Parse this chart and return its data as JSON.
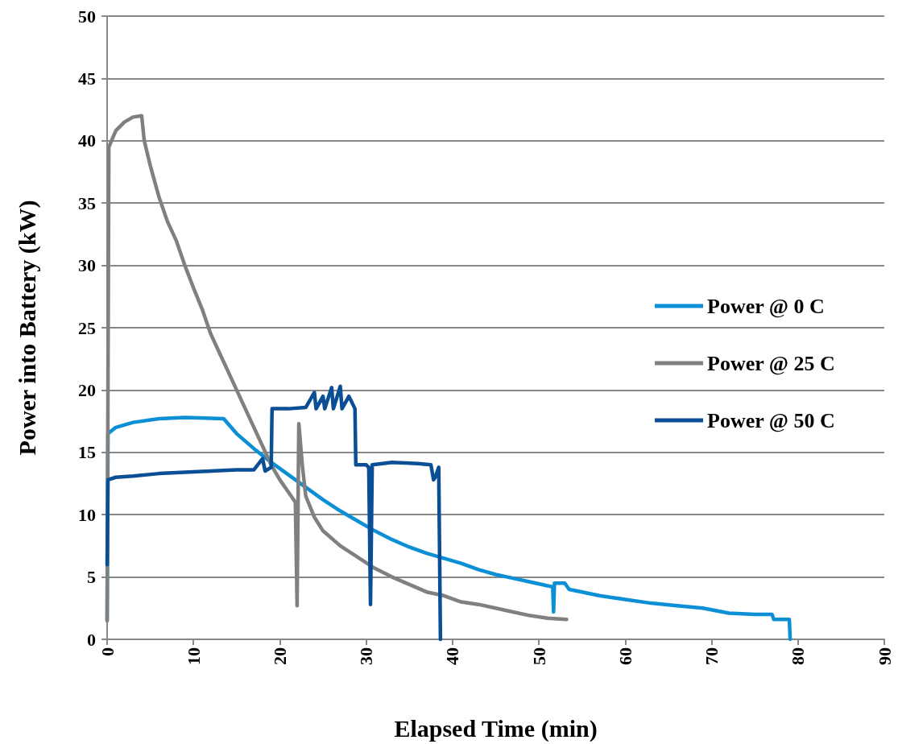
{
  "chart_data": {
    "type": "line",
    "xlabel": "Elapsed Time (min)",
    "ylabel": "Power into Battery (kW)",
    "xlim": [
      0,
      90
    ],
    "xticks": [
      0,
      10,
      20,
      30,
      40,
      50,
      60,
      70,
      80,
      90
    ],
    "ylim": [
      0,
      50
    ],
    "yticks": [
      0,
      5,
      10,
      15,
      20,
      25,
      30,
      35,
      40,
      45,
      50
    ],
    "grid": "y",
    "legend": "right",
    "marker": "none",
    "line_style": "solid",
    "series": [
      {
        "name": "Power @ 0 C",
        "color": "#0c8fd4",
        "x": [
          0,
          0.1,
          1,
          3,
          6,
          9,
          13.5,
          15,
          17,
          19,
          21,
          23,
          25,
          27,
          29,
          31,
          33,
          35,
          37,
          39,
          41,
          43,
          45,
          47,
          49,
          51,
          51.6,
          51.7,
          51.8,
          53,
          53.5,
          55,
          57,
          60,
          63,
          66,
          69,
          72,
          75,
          77,
          77.2,
          79,
          79.1
        ],
        "values": [
          1.5,
          16.5,
          17,
          17.4,
          17.7,
          17.8,
          17.7,
          16.5,
          15.3,
          14.2,
          13.2,
          12.2,
          11.2,
          10.3,
          9.5,
          8.7,
          8,
          7.4,
          6.9,
          6.5,
          6.1,
          5.6,
          5.2,
          4.9,
          4.6,
          4.3,
          4.2,
          2.2,
          4.5,
          4.5,
          4,
          3.8,
          3.5,
          3.2,
          2.9,
          2.7,
          2.5,
          2.1,
          2,
          2,
          1.6,
          1.6,
          0
        ]
      },
      {
        "name": "Power @ 25 C",
        "color": "#808080",
        "x": [
          0,
          0.2,
          1,
          2,
          3,
          4,
          4.3,
          5,
          6,
          7,
          8,
          9,
          10,
          11,
          12,
          13,
          14,
          15,
          16,
          17,
          18,
          19,
          20,
          21,
          21.8,
          22,
          22.2,
          22.6,
          23,
          24,
          25,
          27,
          29,
          31,
          33,
          35,
          37,
          39,
          41,
          43,
          45,
          47,
          49,
          51,
          53.2
        ],
        "values": [
          1.5,
          39.5,
          40.8,
          41.5,
          41.9,
          42,
          40,
          38,
          35.5,
          33.5,
          32,
          30,
          28.2,
          26.5,
          24.5,
          23,
          21.5,
          20,
          18.5,
          17,
          15.5,
          14,
          12.8,
          11.8,
          11,
          2.7,
          17.3,
          14,
          11.5,
          9.8,
          8.7,
          7.5,
          6.6,
          5.7,
          5,
          4.4,
          3.8,
          3.5,
          3,
          2.8,
          2.5,
          2.2,
          1.9,
          1.7,
          1.6
        ]
      },
      {
        "name": "Power @ 50 C",
        "color": "#0a4f96",
        "x": [
          0,
          0.1,
          1,
          3,
          6,
          9,
          12,
          15,
          17,
          18,
          18.3,
          19,
          19.1,
          21,
          23,
          24,
          24.2,
          25,
          25.2,
          26,
          26.2,
          27,
          27.2,
          28,
          28.7,
          28.8,
          30,
          30.3,
          30.5,
          30.7,
          33,
          36,
          37.5,
          37.8,
          38,
          38.4,
          38.6
        ],
        "values": [
          6,
          12.8,
          13,
          13.1,
          13.3,
          13.4,
          13.5,
          13.6,
          13.6,
          14.5,
          13.5,
          13.8,
          18.5,
          18.5,
          18.6,
          19.8,
          18.5,
          19.5,
          18.5,
          20.2,
          18.5,
          20.3,
          18.5,
          19.5,
          18.5,
          14,
          14,
          13.8,
          2.8,
          14,
          14.2,
          14.1,
          14,
          12.8,
          13,
          13.8,
          0
        ]
      }
    ]
  }
}
